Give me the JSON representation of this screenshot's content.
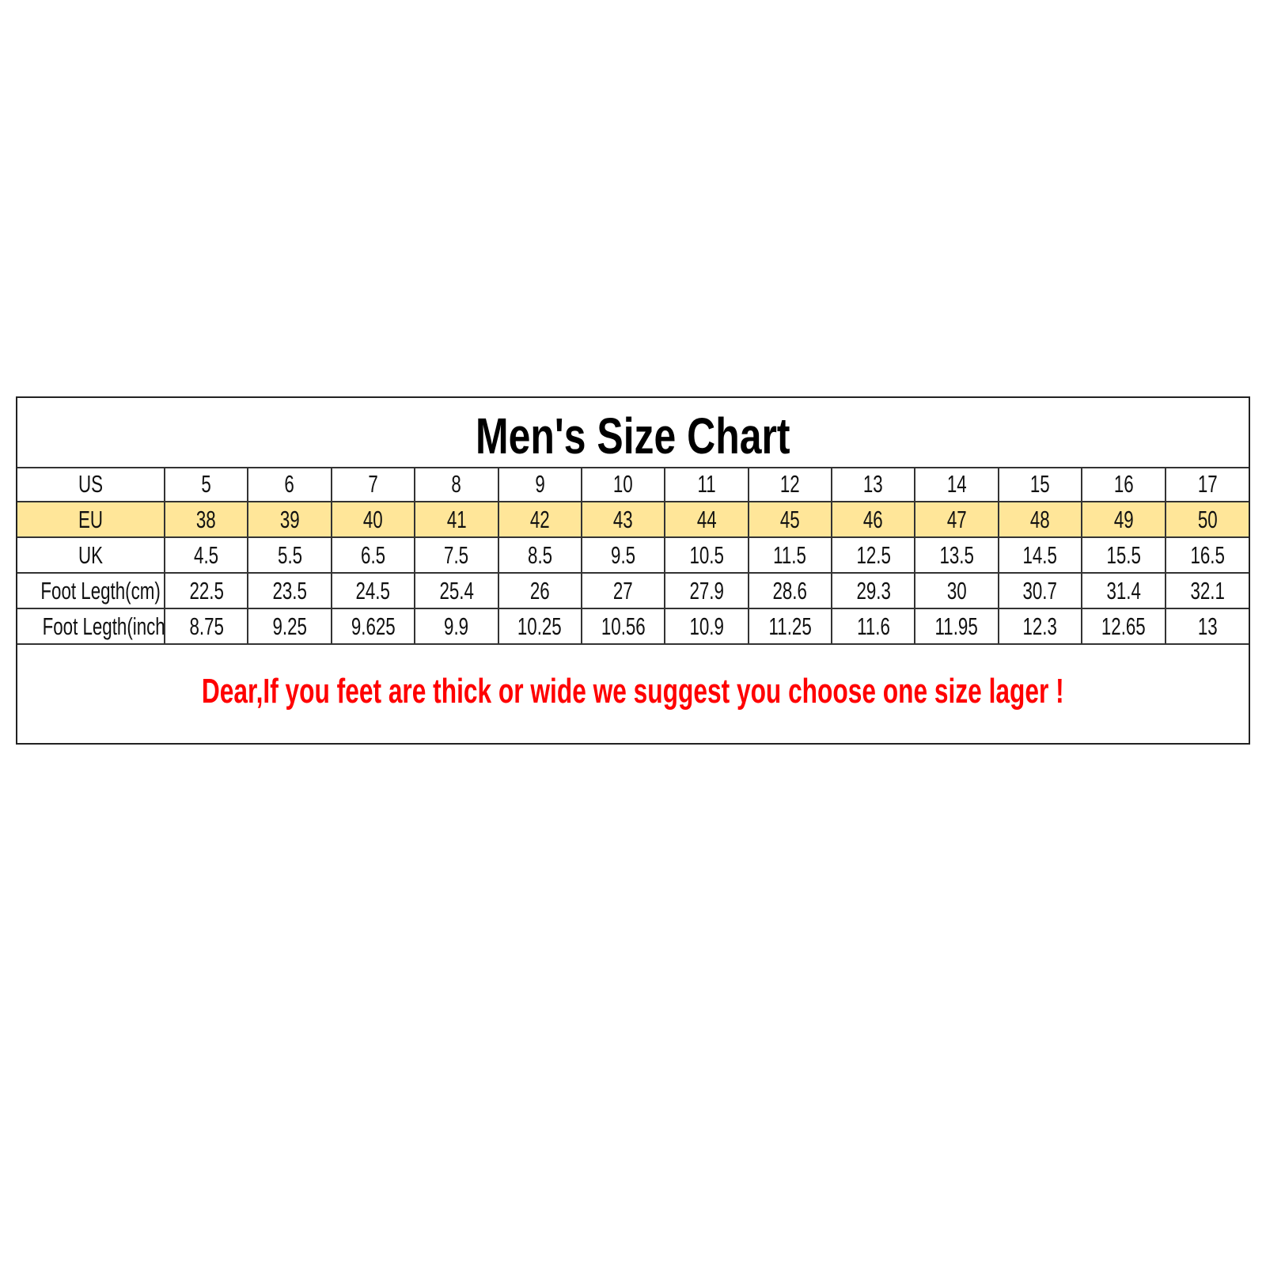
{
  "title": "Men's Size Chart",
  "highlight_color": "#ffe699",
  "note_color": "#ff0000",
  "rows": [
    {
      "label": "US",
      "values": [
        "5",
        "6",
        "7",
        "8",
        "9",
        "10",
        "11",
        "12",
        "13",
        "14",
        "15",
        "16",
        "17"
      ]
    },
    {
      "label": "EU",
      "values": [
        "38",
        "39",
        "40",
        "41",
        "42",
        "43",
        "44",
        "45",
        "46",
        "47",
        "48",
        "49",
        "50"
      ]
    },
    {
      "label": "UK",
      "values": [
        "4.5",
        "5.5",
        "6.5",
        "7.5",
        "8.5",
        "9.5",
        "10.5",
        "11.5",
        "12.5",
        "13.5",
        "14.5",
        "15.5",
        "16.5"
      ]
    },
    {
      "label": "Foot Legth(cm)",
      "values": [
        "22.5",
        "23.5",
        "24.5",
        "25.4",
        "26",
        "27",
        "27.9",
        "28.6",
        "29.3",
        "30",
        "30.7",
        "31.4",
        "32.1"
      ]
    },
    {
      "label": "Foot Legth(inch)",
      "values": [
        "8.75",
        "9.25",
        "9.625",
        "9.9",
        "10.25",
        "10.56",
        "10.9",
        "11.25",
        "11.6",
        "11.95",
        "12.3",
        "12.65",
        "13"
      ]
    }
  ],
  "note": "Dear,If you feet are thick or wide we suggest you choose one size lager !"
}
